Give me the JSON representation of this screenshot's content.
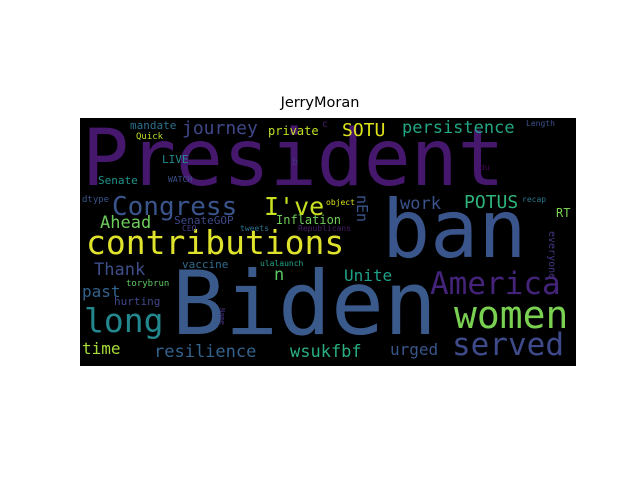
{
  "title": "JerryMoran",
  "words": [
    {
      "text": "President",
      "color": "#46186d"
    },
    {
      "text": "ban",
      "color": "#3a558b"
    },
    {
      "text": "Biden",
      "color": "#3b5a8c"
    },
    {
      "text": "contributions",
      "color": "#dfe32b"
    },
    {
      "text": "America",
      "color": "#44237a"
    },
    {
      "text": "women",
      "color": "#7ad151"
    },
    {
      "text": "long",
      "color": "#23888e"
    },
    {
      "text": "served",
      "color": "#3e4a89"
    },
    {
      "text": "Congress",
      "color": "#3a548c"
    },
    {
      "text": "I've",
      "color": "#c8e020"
    },
    {
      "text": "SOTU",
      "color": "#dde318"
    },
    {
      "text": "persistence",
      "color": "#22a784"
    },
    {
      "text": "journey",
      "color": "#3f4788"
    },
    {
      "text": "POTUS",
      "color": "#2fb47c"
    },
    {
      "text": "work",
      "color": "#3a538b"
    },
    {
      "text": "Ahead",
      "color": "#6ccd5a"
    },
    {
      "text": "Thank",
      "color": "#3d4e8a"
    },
    {
      "text": "Unite",
      "color": "#1fa188"
    },
    {
      "text": "n",
      "color": "#5ac864"
    },
    {
      "text": "past",
      "color": "#33638d"
    },
    {
      "text": "resilience",
      "color": "#33638d"
    },
    {
      "text": "wsukfbf",
      "color": "#29af7f"
    },
    {
      "text": "urged",
      "color": "#39568c"
    },
    {
      "text": "time",
      "color": "#a5db36"
    },
    {
      "text": "nEn",
      "color": "#3a548c"
    },
    {
      "text": "Inflation",
      "color": "#6ece58"
    },
    {
      "text": "private",
      "color": "#c2df23"
    },
    {
      "text": "mandate",
      "color": "#2d708e"
    },
    {
      "text": "LIVE",
      "color": "#238a8d"
    },
    {
      "text": "Senate",
      "color": "#1f948c"
    },
    {
      "text": "SenateGOP",
      "color": "#3e4989"
    },
    {
      "text": "vaccine",
      "color": "#2f6c8e"
    },
    {
      "text": "hurting",
      "color": "#3f4889"
    },
    {
      "text": "torybrun",
      "color": "#5ec962"
    },
    {
      "text": "RT",
      "color": "#7ad151"
    },
    {
      "text": "everyone",
      "color": "#453581"
    },
    {
      "text": "Quick",
      "color": "#bddf26"
    },
    {
      "text": "WATCH",
      "color": "#3b528b"
    },
    {
      "text": "dtype",
      "color": "#39558c"
    },
    {
      "text": "CEO",
      "color": "#433e85"
    },
    {
      "text": "ulalaunch",
      "color": "#20a486"
    },
    {
      "text": "tweets",
      "color": "#2c728e"
    },
    {
      "text": "Republicans",
      "color": "#481a6c"
    },
    {
      "text": "object",
      "color": "#d8e219"
    },
    {
      "text": "recap",
      "color": "#2a768e"
    },
    {
      "text": "Length",
      "color": "#3b528b"
    },
    {
      "text": "b",
      "color": "#46327e"
    },
    {
      "text": "Name",
      "color": "#46337f"
    },
    {
      "text": "du",
      "color": "#440154"
    },
    {
      "text": "c",
      "color": "#481a6c"
    }
  ]
}
